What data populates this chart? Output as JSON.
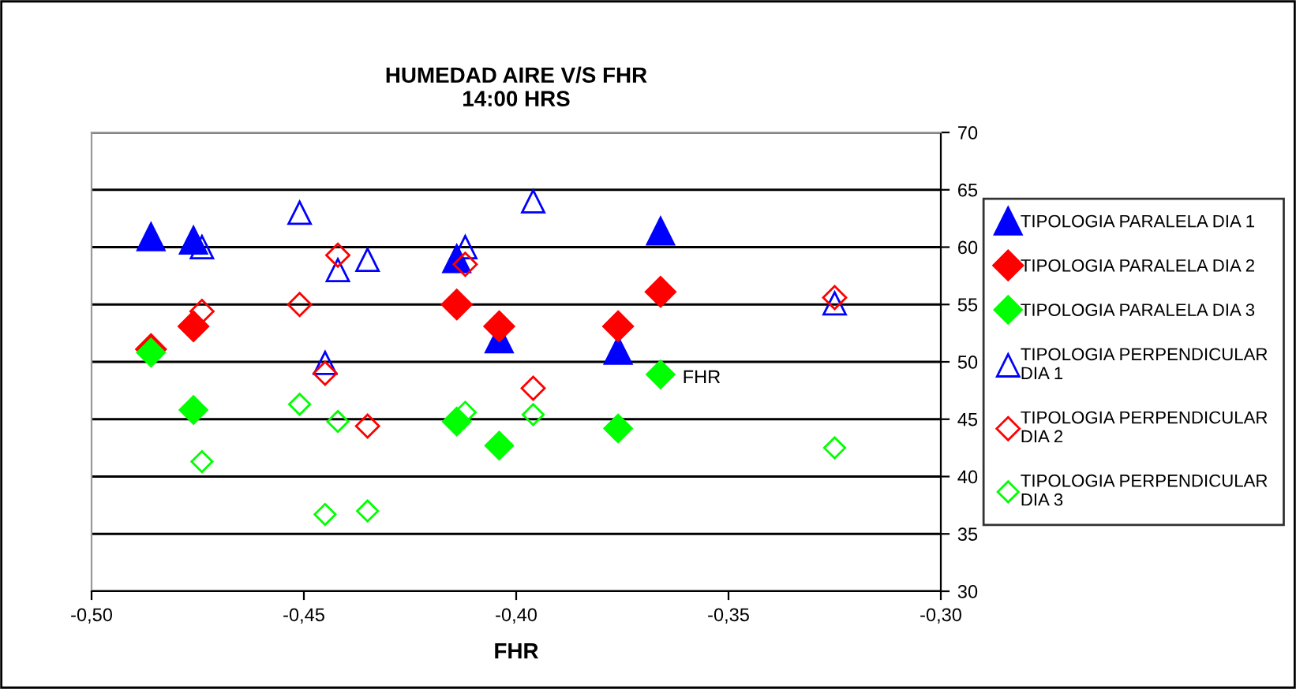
{
  "chart_data": {
    "type": "scatter",
    "title": "HUMEDAD AIRE V/S FHR\n14:00 HRS",
    "xlabel": "FHR",
    "xlim": [
      -0.5,
      -0.3
    ],
    "xticks": [
      {
        "value": -0.5,
        "label": "-0,50"
      },
      {
        "value": -0.45,
        "label": "-0,45"
      },
      {
        "value": -0.4,
        "label": "-0,40"
      },
      {
        "value": -0.35,
        "label": "-0,35"
      },
      {
        "value": -0.3,
        "label": "-0,30"
      }
    ],
    "ylim": [
      30,
      70
    ],
    "yticks": [
      30,
      35,
      40,
      45,
      50,
      55,
      60,
      65,
      70
    ],
    "grid": "y",
    "legend": "right",
    "annotations": [
      {
        "text": "FHR",
        "x": -0.366,
        "y": 48.9
      }
    ],
    "series": [
      {
        "name": "TIPOLOGIA PARALELA DIA 1",
        "color": "#0000ff",
        "marker": "triangle",
        "x": [
          -0.486,
          -0.476,
          -0.414,
          -0.404,
          -0.376,
          -0.366
        ],
        "values": [
          60.9,
          60.6,
          59.0,
          52.0,
          51.0,
          61.4
        ]
      },
      {
        "name": "TIPOLOGIA PARALELA DIA 2",
        "color": "#ff0000",
        "marker": "diamond",
        "x": [
          -0.486,
          -0.476,
          -0.414,
          -0.404,
          -0.376,
          -0.366
        ],
        "values": [
          51.1,
          53.1,
          55.0,
          53.1,
          53.1,
          56.1
        ]
      },
      {
        "name": "TIPOLOGIA PARALELA DIA 3",
        "color": "#00ff00",
        "marker": "diamond",
        "x": [
          -0.486,
          -0.476,
          -0.414,
          -0.404,
          -0.376,
          -0.366
        ],
        "values": [
          50.8,
          45.8,
          44.8,
          42.7,
          44.2,
          48.9
        ]
      },
      {
        "name": "TIPOLOGIA PERPENDICULAR\nDIA 1",
        "color": "#0000ff",
        "marker": "triangle",
        "x": [
          -0.474,
          -0.451,
          -0.445,
          -0.442,
          -0.435,
          -0.412,
          -0.396,
          -0.325
        ],
        "values": [
          60.0,
          63.0,
          49.9,
          58.0,
          58.9,
          60.0,
          64.0,
          55.1
        ]
      },
      {
        "name": "TIPOLOGIA PERPENDICULAR\nDIA 2",
        "color": "#ff0000",
        "marker": "diamond",
        "x": [
          -0.474,
          -0.451,
          -0.445,
          -0.442,
          -0.435,
          -0.412,
          -0.396,
          -0.325
        ],
        "values": [
          54.4,
          55.0,
          49.0,
          59.3,
          44.4,
          58.5,
          47.7,
          55.6
        ]
      },
      {
        "name": "TIPOLOGIA PERPENDICULAR\nDIA 3",
        "color": "#00ff00",
        "marker": "diamond",
        "x": [
          -0.474,
          -0.451,
          -0.445,
          -0.442,
          -0.435,
          -0.412,
          -0.396,
          -0.325
        ],
        "values": [
          41.3,
          46.3,
          36.7,
          44.8,
          37.0,
          45.6,
          45.4,
          42.5
        ]
      }
    ]
  }
}
